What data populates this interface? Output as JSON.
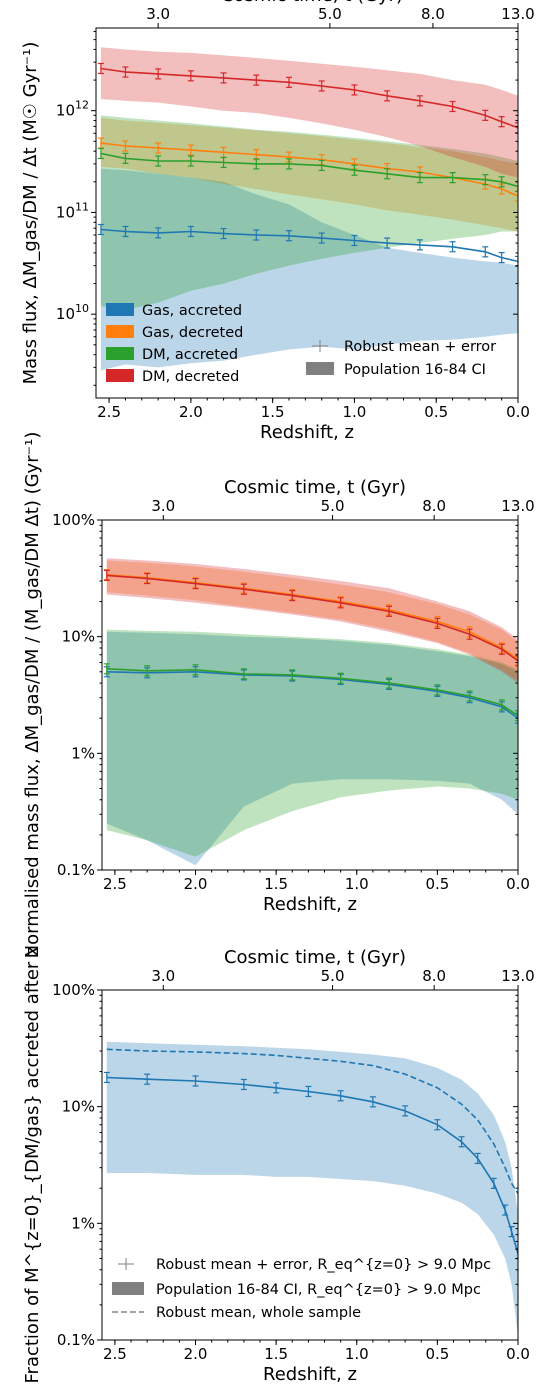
{
  "palette": {
    "gas_accreted": "#1f77b4",
    "gas_decreted": "#ff7f0e",
    "dm_accreted": "#2ca02c",
    "dm_decreted": "#d62728",
    "legend_grey": "#808080"
  },
  "chart_data": [
    {
      "type": "line",
      "title": "",
      "xlabel": "Redshift, z",
      "ylabel": "Mass flux, ΔM_gas/DM / Δt (M☉ Gyr⁻¹)",
      "top_axis_label": "Cosmic time, t (Gyr)",
      "xlim": [
        2.58,
        0.0
      ],
      "ylim": [
        1500000000.0,
        6500000000000.0
      ],
      "yscale": "log",
      "x_ticks": [
        2.5,
        2.0,
        1.5,
        1.0,
        0.5,
        0.0
      ],
      "x_tick_labels": [
        "2.5",
        "2.0",
        "1.5",
        "1.0",
        "0.5",
        "0.0"
      ],
      "y_ticks": [
        10000000000.0,
        100000000000.0,
        1000000000000.0
      ],
      "y_tick_labels": [
        "10^10",
        "10^11",
        "10^12"
      ],
      "top_ticks_z": [
        2.2,
        1.15,
        0.52,
        0.0
      ],
      "top_tick_labels": [
        "3.0",
        "5.0",
        "8.0",
        "13.0"
      ],
      "legend_series": [
        "Gas, accreted",
        "Gas, decreted",
        "DM, accreted",
        "DM, decreted"
      ],
      "legend_style": [
        "Robust mean + error",
        "Population 16-84 CI"
      ],
      "series": [
        {
          "name": "Gas, accreted",
          "key": "gas_accreted",
          "x": [
            2.55,
            2.4,
            2.2,
            2.0,
            1.8,
            1.6,
            1.4,
            1.2,
            1.0,
            0.8,
            0.6,
            0.4,
            0.2,
            0.1,
            0.0
          ],
          "y": [
            68000000000.0,
            65000000000.0,
            63000000000.0,
            65000000000.0,
            62000000000.0,
            60000000000.0,
            59000000000.0,
            56000000000.0,
            53000000000.0,
            50000000000.0,
            48000000000.0,
            46000000000.0,
            41000000000.0,
            36000000000.0,
            33000000000.0
          ],
          "lo": [
            2800000000.0,
            3200000000.0,
            3000000000.0,
            3300000000.0,
            3500000000.0,
            4000000000.0,
            4500000000.0,
            4800000000.0,
            4500000000.0,
            5000000000.0,
            5500000000.0,
            5600000000.0,
            6000000000.0,
            6300000000.0,
            6500000000.0
          ],
          "hi": [
            270000000000.0,
            260000000000.0,
            240000000000.0,
            220000000000.0,
            200000000000.0,
            150000000000.0,
            120000000000.0,
            80000000000.0,
            60000000000.0,
            45000000000.0,
            40000000000.0,
            36000000000.0,
            33000000000.0,
            32000000000.0,
            30000000000.0
          ]
        },
        {
          "name": "Gas, decreted",
          "key": "gas_decreted",
          "x": [
            2.55,
            2.4,
            2.2,
            2.0,
            1.8,
            1.6,
            1.4,
            1.2,
            1.0,
            0.8,
            0.6,
            0.4,
            0.2,
            0.1,
            0.0
          ],
          "y": [
            480000000000.0,
            450000000000.0,
            430000000000.0,
            410000000000.0,
            390000000000.0,
            370000000000.0,
            350000000000.0,
            330000000000.0,
            300000000000.0,
            270000000000.0,
            250000000000.0,
            220000000000.0,
            190000000000.0,
            170000000000.0,
            145000000000.0
          ],
          "lo": [
            280000000000.0,
            270000000000.0,
            240000000000.0,
            220000000000.0,
            190000000000.0,
            170000000000.0,
            150000000000.0,
            135000000000.0,
            120000000000.0,
            105000000000.0,
            95000000000.0,
            85000000000.0,
            75000000000.0,
            70000000000.0,
            65000000000.0
          ],
          "hi": [
            850000000000.0,
            800000000000.0,
            760000000000.0,
            720000000000.0,
            680000000000.0,
            640000000000.0,
            600000000000.0,
            560000000000.0,
            520000000000.0,
            480000000000.0,
            440000000000.0,
            400000000000.0,
            350000000000.0,
            320000000000.0,
            300000000000.0
          ]
        },
        {
          "name": "DM, accreted",
          "key": "dm_accreted",
          "x": [
            2.55,
            2.4,
            2.2,
            2.0,
            1.8,
            1.6,
            1.4,
            1.2,
            1.0,
            0.8,
            0.6,
            0.4,
            0.2,
            0.1,
            0.0
          ],
          "y": [
            380000000000.0,
            340000000000.0,
            320000000000.0,
            320000000000.0,
            310000000000.0,
            300000000000.0,
            300000000000.0,
            290000000000.0,
            260000000000.0,
            240000000000.0,
            220000000000.0,
            220000000000.0,
            210000000000.0,
            200000000000.0,
            180000000000.0
          ],
          "lo": [
            12000000000.0,
            11000000000.0,
            13000000000.0,
            17000000000.0,
            20000000000.0,
            25000000000.0,
            30000000000.0,
            35000000000.0,
            40000000000.0,
            45000000000.0,
            50000000000.0,
            55000000000.0,
            60000000000.0,
            65000000000.0,
            65000000000.0
          ],
          "hi": [
            900000000000.0,
            850000000000.0,
            800000000000.0,
            750000000000.0,
            700000000000.0,
            650000000000.0,
            620000000000.0,
            580000000000.0,
            540000000000.0,
            500000000000.0,
            460000000000.0,
            420000000000.0,
            380000000000.0,
            350000000000.0,
            320000000000.0
          ]
        },
        {
          "name": "DM, decreted",
          "key": "dm_decreted",
          "x": [
            2.55,
            2.4,
            2.2,
            2.0,
            1.8,
            1.6,
            1.4,
            1.2,
            1.0,
            0.8,
            0.6,
            0.4,
            0.2,
            0.1,
            0.0
          ],
          "y": [
            2600000000000.0,
            2400000000000.0,
            2300000000000.0,
            2200000000000.0,
            2100000000000.0,
            2000000000000.0,
            1900000000000.0,
            1750000000000.0,
            1600000000000.0,
            1400000000000.0,
            1250000000000.0,
            1100000000000.0,
            900000000000.0,
            780000000000.0,
            680000000000.0
          ],
          "lo": [
            1300000000000.0,
            1250000000000.0,
            1200000000000.0,
            1100000000000.0,
            1000000000000.0,
            950000000000.0,
            850000000000.0,
            750000000000.0,
            650000000000.0,
            550000000000.0,
            450000000000.0,
            350000000000.0,
            280000000000.0,
            240000000000.0,
            220000000000.0
          ],
          "hi": [
            4200000000000.0,
            4000000000000.0,
            3800000000000.0,
            3700000000000.0,
            3500000000000.0,
            3300000000000.0,
            3100000000000.0,
            2900000000000.0,
            2700000000000.0,
            2500000000000.0,
            2300000000000.0,
            2000000000000.0,
            1800000000000.0,
            1600000000000.0,
            1400000000000.0
          ]
        }
      ]
    },
    {
      "type": "line",
      "title": "",
      "xlabel": "Redshift, z",
      "ylabel": "Normalised mass flux, ΔM_gas/DM / (M_gas/DM Δt) (Gyr⁻¹)",
      "top_axis_label": "Cosmic time, t (Gyr)",
      "xlim": [
        2.58,
        0.0
      ],
      "ylim": [
        0.001,
        1.0
      ],
      "yscale": "log",
      "x_ticks": [
        2.5,
        2.0,
        1.5,
        1.0,
        0.5,
        0.0
      ],
      "x_tick_labels": [
        "2.5",
        "2.0",
        "1.5",
        "1.0",
        "0.5",
        "0.0"
      ],
      "y_ticks": [
        0.001,
        0.01,
        0.1,
        1.0
      ],
      "y_tick_labels": [
        "0.1%",
        "1%",
        "10%",
        "100%"
      ],
      "top_ticks_z": [
        2.2,
        1.15,
        0.52,
        0.0
      ],
      "top_tick_labels": [
        "3.0",
        "5.0",
        "8.0",
        "13.0"
      ],
      "series": [
        {
          "name": "Gas, accreted",
          "key": "gas_accreted",
          "x": [
            2.55,
            2.3,
            2.0,
            1.7,
            1.4,
            1.1,
            0.8,
            0.5,
            0.3,
            0.1,
            0.0
          ],
          "y": [
            0.05,
            0.049,
            0.05,
            0.047,
            0.046,
            0.043,
            0.039,
            0.034,
            0.03,
            0.025,
            0.02
          ],
          "lo": [
            0.0025,
            0.0018,
            0.0011,
            0.0035,
            0.0055,
            0.006,
            0.006,
            0.0058,
            0.0055,
            0.004,
            0.003
          ],
          "hi": [
            0.11,
            0.108,
            0.105,
            0.1,
            0.097,
            0.092,
            0.085,
            0.075,
            0.068,
            0.058,
            0.05
          ]
        },
        {
          "name": "Gas, decreted",
          "key": "gas_decreted",
          "x": [
            2.55,
            2.3,
            2.0,
            1.7,
            1.4,
            1.1,
            0.8,
            0.5,
            0.3,
            0.1,
            0.0
          ],
          "y": [
            0.34,
            0.32,
            0.29,
            0.26,
            0.23,
            0.2,
            0.17,
            0.135,
            0.11,
            0.08,
            0.064
          ],
          "lo": [
            0.24,
            0.225,
            0.205,
            0.18,
            0.16,
            0.14,
            0.115,
            0.09,
            0.072,
            0.052,
            0.042
          ],
          "hi": [
            0.45,
            0.43,
            0.4,
            0.36,
            0.32,
            0.28,
            0.24,
            0.19,
            0.155,
            0.115,
            0.09
          ]
        },
        {
          "name": "DM, accreted",
          "key": "dm_accreted",
          "x": [
            2.55,
            2.3,
            2.0,
            1.7,
            1.4,
            1.1,
            0.8,
            0.5,
            0.3,
            0.1,
            0.0
          ],
          "y": [
            0.053,
            0.051,
            0.052,
            0.048,
            0.047,
            0.044,
            0.04,
            0.035,
            0.031,
            0.026,
            0.021
          ],
          "lo": [
            0.0022,
            0.0018,
            0.0013,
            0.0022,
            0.0032,
            0.0042,
            0.0048,
            0.0052,
            0.005,
            0.0045,
            0.004
          ],
          "hi": [
            0.115,
            0.112,
            0.11,
            0.105,
            0.1,
            0.095,
            0.088,
            0.078,
            0.07,
            0.06,
            0.052
          ]
        },
        {
          "name": "DM, decreted",
          "key": "dm_decreted",
          "x": [
            2.55,
            2.3,
            2.0,
            1.7,
            1.4,
            1.1,
            0.8,
            0.5,
            0.3,
            0.1,
            0.0
          ],
          "y": [
            0.335,
            0.315,
            0.285,
            0.255,
            0.225,
            0.195,
            0.165,
            0.13,
            0.105,
            0.078,
            0.062
          ],
          "lo": [
            0.23,
            0.215,
            0.195,
            0.175,
            0.155,
            0.135,
            0.11,
            0.088,
            0.07,
            0.05,
            0.04
          ],
          "hi": [
            0.47,
            0.45,
            0.42,
            0.38,
            0.34,
            0.3,
            0.26,
            0.2,
            0.165,
            0.12,
            0.095
          ]
        }
      ]
    },
    {
      "type": "line",
      "title": "",
      "xlabel": "Redshift, z",
      "ylabel": "Fraction of M^{z=0}_{DM/gas} accreted after z",
      "top_axis_label": "Cosmic time, t (Gyr)",
      "xlim": [
        2.58,
        0.0
      ],
      "ylim": [
        0.001,
        1.0
      ],
      "yscale": "log",
      "x_ticks": [
        2.5,
        2.0,
        1.5,
        1.0,
        0.5,
        0.0
      ],
      "x_tick_labels": [
        "2.5",
        "2.0",
        "1.5",
        "1.0",
        "0.5",
        "0.0"
      ],
      "y_ticks": [
        0.001,
        0.01,
        0.1,
        1.0
      ],
      "y_tick_labels": [
        "0.1%",
        "1%",
        "10%",
        "100%"
      ],
      "top_ticks_z": [
        2.2,
        1.15,
        0.52,
        0.0
      ],
      "top_tick_labels": [
        "3.0",
        "5.0",
        "8.0",
        "13.0"
      ],
      "legend_style": [
        "Robust mean + error, R_eq^{z=0} > 9.0 Mpc",
        "Population 16-84 CI, R_eq^{z=0} > 9.0 Mpc",
        "Robust mean, whole sample"
      ],
      "series": [
        {
          "name": "Robust mean + error, R_eq^{z=0} > 9.0 Mpc",
          "key": "gas_accreted",
          "x": [
            2.55,
            2.3,
            2.0,
            1.7,
            1.5,
            1.3,
            1.1,
            0.9,
            0.7,
            0.5,
            0.35,
            0.25,
            0.15,
            0.08,
            0.04,
            0.0
          ],
          "y": [
            0.178,
            0.172,
            0.166,
            0.155,
            0.145,
            0.135,
            0.124,
            0.11,
            0.092,
            0.07,
            0.05,
            0.036,
            0.022,
            0.013,
            0.0085,
            0.0055
          ],
          "lo": [
            0.027,
            0.027,
            0.026,
            0.026,
            0.025,
            0.025,
            0.024,
            0.023,
            0.021,
            0.018,
            0.015,
            0.012,
            0.008,
            0.005,
            0.003,
            0.0011
          ],
          "hi": [
            0.36,
            0.35,
            0.34,
            0.33,
            0.32,
            0.31,
            0.295,
            0.28,
            0.26,
            0.215,
            0.17,
            0.13,
            0.085,
            0.05,
            0.03,
            0.012
          ]
        },
        {
          "name": "Robust mean, whole sample",
          "key": "gas_accreted",
          "style": "dashed",
          "x": [
            2.55,
            2.3,
            2.0,
            1.7,
            1.5,
            1.3,
            1.1,
            0.9,
            0.7,
            0.5,
            0.35,
            0.25,
            0.15,
            0.08,
            0.04,
            0.0
          ],
          "y": [
            0.31,
            0.3,
            0.295,
            0.285,
            0.275,
            0.26,
            0.245,
            0.225,
            0.19,
            0.145,
            0.105,
            0.077,
            0.048,
            0.03,
            0.022,
            0.018
          ]
        }
      ]
    }
  ]
}
